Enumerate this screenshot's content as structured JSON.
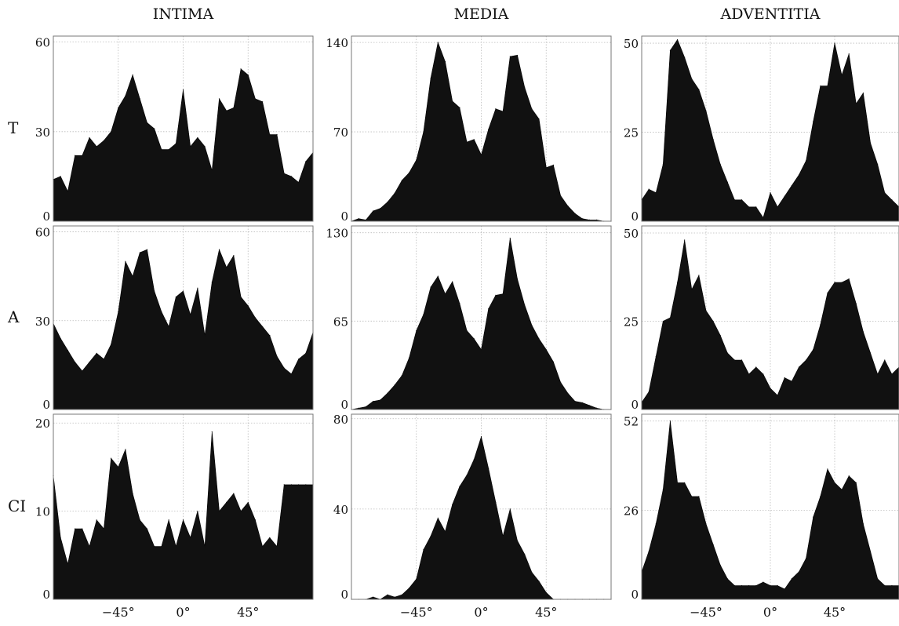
{
  "columns": [
    "INTIMA",
    "MEDIA",
    "ADVENTITIA"
  ],
  "rows": [
    "T",
    "A",
    "CI"
  ],
  "x_ticks": [
    {
      "value": -45,
      "label": "−45°"
    },
    {
      "value": 0,
      "label": "0°"
    },
    {
      "value": 45,
      "label": "45°"
    }
  ],
  "colors": {
    "fill": "#111111",
    "grid": "#bbbbbb",
    "frame": "#777777",
    "text": "#111111"
  },
  "chart_data": [
    {
      "type": "area",
      "row": "T",
      "column": "INTIMA",
      "xlim": [
        -90,
        90
      ],
      "ylim": [
        0,
        62
      ],
      "yticks": [
        0,
        30,
        60
      ],
      "grid": true,
      "x": [
        -90,
        -85,
        -80,
        -75,
        -70,
        -65,
        -60,
        -55,
        -50,
        -45,
        -40,
        -35,
        -30,
        -25,
        -20,
        -15,
        -10,
        -5,
        0,
        5,
        10,
        15,
        20,
        25,
        30,
        35,
        40,
        45,
        50,
        55,
        60,
        65,
        70,
        75,
        80,
        85,
        90
      ],
      "values": [
        14,
        15,
        10,
        22,
        22,
        28,
        25,
        27,
        30,
        38,
        42,
        49,
        41,
        33,
        31,
        24,
        24,
        26,
        44,
        25,
        28,
        25,
        17,
        41,
        37,
        38,
        51,
        49,
        41,
        40,
        29,
        29,
        16,
        15,
        13,
        20,
        23
      ]
    },
    {
      "type": "area",
      "row": "T",
      "column": "MEDIA",
      "xlim": [
        -90,
        90
      ],
      "ylim": [
        0,
        145
      ],
      "yticks": [
        0,
        70,
        140
      ],
      "grid": true,
      "x": [
        -90,
        -85,
        -80,
        -75,
        -70,
        -65,
        -60,
        -55,
        -50,
        -45,
        -40,
        -35,
        -30,
        -25,
        -20,
        -15,
        -10,
        -5,
        0,
        5,
        10,
        15,
        20,
        25,
        30,
        35,
        40,
        45,
        50,
        55,
        60,
        65,
        70,
        75,
        80,
        85,
        90
      ],
      "values": [
        0,
        2,
        1,
        8,
        10,
        15,
        22,
        32,
        38,
        48,
        70,
        112,
        140,
        125,
        94,
        89,
        62,
        64,
        52,
        72,
        88,
        86,
        129,
        130,
        105,
        88,
        80,
        42,
        44,
        20,
        12,
        6,
        2,
        1,
        1,
        0,
        0
      ]
    },
    {
      "type": "area",
      "row": "T",
      "column": "ADVENTITIA",
      "xlim": [
        -90,
        90
      ],
      "ylim": [
        0,
        52
      ],
      "yticks": [
        0,
        25,
        50
      ],
      "grid": true,
      "x": [
        -90,
        -85,
        -80,
        -75,
        -70,
        -65,
        -60,
        -55,
        -50,
        -45,
        -40,
        -35,
        -30,
        -25,
        -20,
        -15,
        -10,
        -5,
        0,
        5,
        10,
        15,
        20,
        25,
        30,
        35,
        40,
        45,
        50,
        55,
        60,
        65,
        70,
        75,
        80,
        85,
        90
      ],
      "values": [
        6,
        9,
        8,
        16,
        48,
        51,
        46,
        40,
        37,
        31,
        23,
        16,
        11,
        6,
        6,
        4,
        4,
        1,
        8,
        4,
        7,
        10,
        13,
        17,
        28,
        38,
        38,
        50,
        41,
        47,
        33,
        36,
        22,
        16,
        8,
        6,
        4
      ]
    },
    {
      "type": "area",
      "row": "A",
      "column": "INTIMA",
      "xlim": [
        -90,
        90
      ],
      "ylim": [
        0,
        62
      ],
      "yticks": [
        0,
        30,
        60
      ],
      "grid": true,
      "x": [
        -90,
        -85,
        -80,
        -75,
        -70,
        -65,
        -60,
        -55,
        -50,
        -45,
        -40,
        -35,
        -30,
        -25,
        -20,
        -15,
        -10,
        -5,
        0,
        5,
        10,
        15,
        20,
        25,
        30,
        35,
        40,
        45,
        50,
        55,
        60,
        65,
        70,
        75,
        80,
        85,
        90
      ],
      "values": [
        29,
        24,
        20,
        16,
        13,
        16,
        19,
        17,
        22,
        33,
        50,
        45,
        53,
        54,
        40,
        33,
        28,
        38,
        40,
        32,
        41,
        25,
        43,
        54,
        48,
        52,
        38,
        35,
        31,
        28,
        25,
        18,
        14,
        12,
        17,
        19,
        26
      ]
    },
    {
      "type": "area",
      "row": "A",
      "column": "MEDIA",
      "xlim": [
        -90,
        90
      ],
      "ylim": [
        0,
        135
      ],
      "yticks": [
        0,
        65,
        130
      ],
      "grid": true,
      "x": [
        -90,
        -85,
        -80,
        -75,
        -70,
        -65,
        -60,
        -55,
        -50,
        -45,
        -40,
        -35,
        -30,
        -25,
        -20,
        -15,
        -10,
        -5,
        0,
        5,
        10,
        15,
        20,
        25,
        30,
        35,
        40,
        45,
        50,
        55,
        60,
        65,
        70,
        75,
        80,
        85,
        90
      ],
      "values": [
        0,
        1,
        2,
        6,
        7,
        12,
        18,
        25,
        38,
        58,
        70,
        90,
        98,
        85,
        94,
        78,
        58,
        52,
        44,
        74,
        84,
        85,
        126,
        96,
        77,
        62,
        52,
        44,
        35,
        20,
        12,
        6,
        5,
        3,
        1,
        0,
        0
      ]
    },
    {
      "type": "area",
      "row": "A",
      "column": "ADVENTITIA",
      "xlim": [
        -90,
        90
      ],
      "ylim": [
        0,
        52
      ],
      "yticks": [
        0,
        25,
        50
      ],
      "grid": true,
      "x": [
        -90,
        -85,
        -80,
        -75,
        -70,
        -65,
        -60,
        -55,
        -50,
        -45,
        -40,
        -35,
        -30,
        -25,
        -20,
        -15,
        -10,
        -5,
        0,
        5,
        10,
        15,
        20,
        25,
        30,
        35,
        40,
        45,
        50,
        55,
        60,
        65,
        70,
        75,
        80,
        85,
        90
      ],
      "values": [
        2,
        5,
        15,
        25,
        26,
        36,
        48,
        34,
        38,
        28,
        25,
        21,
        16,
        14,
        14,
        10,
        12,
        10,
        6,
        4,
        9,
        8,
        12,
        14,
        17,
        24,
        33,
        36,
        36,
        37,
        30,
        22,
        16,
        10,
        14,
        10,
        12
      ]
    },
    {
      "type": "area",
      "row": "CI",
      "column": "INTIMA",
      "xlim": [
        -90,
        90
      ],
      "ylim": [
        0,
        21
      ],
      "yticks": [
        0,
        10,
        20
      ],
      "grid": true,
      "x": [
        -90,
        -85,
        -80,
        -75,
        -70,
        -65,
        -60,
        -55,
        -50,
        -45,
        -40,
        -35,
        -30,
        -25,
        -20,
        -15,
        -10,
        -5,
        0,
        5,
        10,
        15,
        20,
        25,
        30,
        35,
        40,
        45,
        50,
        55,
        60,
        65,
        70,
        75,
        80,
        85,
        90
      ],
      "values": [
        14,
        7,
        4,
        8,
        8,
        6,
        9,
        8,
        16,
        15,
        17,
        12,
        9,
        8,
        6,
        6,
        9,
        6,
        9,
        7,
        10,
        6,
        19,
        10,
        11,
        12,
        10,
        11,
        9,
        6,
        7,
        6,
        13,
        13,
        13,
        13,
        13
      ]
    },
    {
      "type": "area",
      "row": "CI",
      "column": "MEDIA",
      "xlim": [
        -90,
        90
      ],
      "ylim": [
        0,
        82
      ],
      "yticks": [
        0,
        40,
        80
      ],
      "grid": true,
      "x": [
        -90,
        -85,
        -80,
        -75,
        -70,
        -65,
        -60,
        -55,
        -50,
        -45,
        -40,
        -35,
        -30,
        -25,
        -20,
        -15,
        -10,
        -5,
        0,
        5,
        10,
        15,
        20,
        25,
        30,
        35,
        40,
        45,
        50,
        55,
        60,
        65,
        70,
        75,
        80,
        85,
        90
      ],
      "values": [
        0,
        0,
        0,
        1,
        0,
        2,
        1,
        2,
        5,
        9,
        22,
        28,
        36,
        30,
        42,
        50,
        55,
        62,
        72,
        58,
        43,
        28,
        40,
        26,
        20,
        12,
        8,
        3,
        0,
        0,
        0,
        0,
        0,
        0,
        0,
        0,
        0
      ]
    },
    {
      "type": "area",
      "row": "CI",
      "column": "ADVENTITIA",
      "xlim": [
        -90,
        90
      ],
      "ylim": [
        0,
        54
      ],
      "yticks": [
        0,
        26,
        52
      ],
      "grid": true,
      "x": [
        -90,
        -85,
        -80,
        -75,
        -70,
        -65,
        -60,
        -55,
        -50,
        -45,
        -40,
        -35,
        -30,
        -25,
        -20,
        -15,
        -10,
        -5,
        0,
        5,
        10,
        15,
        20,
        25,
        30,
        35,
        40,
        45,
        50,
        55,
        60,
        65,
        70,
        75,
        80,
        85,
        90
      ],
      "values": [
        8,
        14,
        22,
        32,
        52,
        34,
        34,
        30,
        30,
        22,
        16,
        10,
        6,
        4,
        4,
        4,
        4,
        5,
        4,
        4,
        3,
        6,
        8,
        12,
        24,
        30,
        38,
        34,
        32,
        36,
        34,
        22,
        14,
        6,
        4,
        4,
        4
      ]
    }
  ]
}
